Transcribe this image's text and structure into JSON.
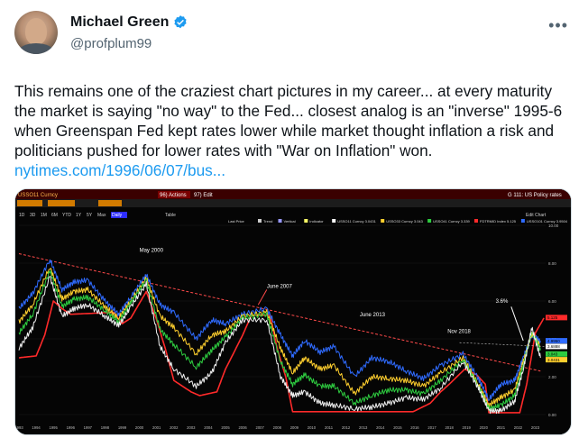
{
  "author": {
    "name": "Michael Green",
    "handle": "@profplum99"
  },
  "tweet": {
    "text": "This remains one of the craziest chart pictures in my career... at every maturity the market is saying \"no way\" to the Fed... closest analog is an \"inverse\" 1995-6 when Greenspan Fed kept rates lower while market thought inflation a risk and politicians pushed for lower rates with \"War on Inflation\" won. ",
    "link": "nytimes.com/1996/06/07/bus..."
  },
  "terminal": {
    "ticker": "USSO11 Curncy",
    "menu_actions": "96) Actions",
    "menu_edit": "97) Edit",
    "right_title": "G 111: US Policy rates",
    "toolbar_buttons": [
      "1D",
      "3D",
      "1M",
      "6M",
      "YTD",
      "1Y",
      "5Y",
      "Max"
    ],
    "toolbar_daily": "Daily",
    "toolbar_table": "Table",
    "legend_items": [
      "Last Price",
      "Trend",
      "Vertical",
      "Indicator",
      "USSO11 Curncy 3.0431",
      "USSO33 Curncy 3.043",
      "USSO41 Curncy 3.339",
      "FDTRMID Index 5.125",
      "USSO101 Curncy 3.9504"
    ],
    "edit_chart": "Edit Chart"
  },
  "chart_data": {
    "type": "line",
    "x_ticks": [
      "1993",
      "1994",
      "1995",
      "1996",
      "1997",
      "1998",
      "1999",
      "2000",
      "2001",
      "2002",
      "2003",
      "2004",
      "2005",
      "2006",
      "2007",
      "2008",
      "2009",
      "2010",
      "2011",
      "2012",
      "2013",
      "2014",
      "2015",
      "2016",
      "2017",
      "2018",
      "2019",
      "2020",
      "2021",
      "2022",
      "2023"
    ],
    "y_ticks": [
      "10.00",
      "8.00",
      "6.00",
      "4.00",
      "2.00",
      "0.00"
    ],
    "ylim": [
      0,
      10
    ],
    "annotations": [
      "May 2000",
      "June 2007",
      "June 2013",
      "Nov 2018",
      "3.6%"
    ],
    "price_tags": [
      "5.125",
      "4.9950",
      "3.6888",
      "3.043",
      "3.0431"
    ],
    "series": [
      {
        "color": "#ff2a2a",
        "x": [
          1993.0,
          1994.0,
          1994.5,
          1995.0,
          1995.5,
          1996.0,
          1998.5,
          1999.0,
          1999.5,
          2000.4,
          2001.0,
          2001.5,
          2002.0,
          2003.0,
          2003.5,
          2004.5,
          2005.0,
          2006.0,
          2006.5,
          2007.6,
          2008.0,
          2008.5,
          2008.9,
          2015.9,
          2016.9,
          2017.5,
          2018.0,
          2018.9,
          2019.6,
          2020.1,
          2020.3,
          2022.1,
          2022.5,
          2022.8,
          2023.0,
          2023.5
        ],
        "values": [
          3.0,
          3.1,
          4.2,
          6.0,
          5.6,
          5.3,
          5.4,
          4.8,
          5.1,
          6.5,
          5.0,
          3.5,
          1.8,
          1.2,
          1.0,
          1.2,
          2.4,
          4.2,
          5.25,
          5.25,
          3.5,
          2.0,
          0.15,
          0.15,
          0.6,
          1.2,
          1.6,
          2.4,
          2.1,
          1.6,
          0.1,
          0.1,
          1.6,
          3.2,
          4.3,
          5.1
        ]
      },
      {
        "color": "#2f6bff",
        "x": [
          1993.0,
          1993.8,
          1994.8,
          1995.5,
          1996.2,
          1997.0,
          1998.0,
          1998.8,
          1999.5,
          2000.4,
          2001.2,
          2002.0,
          2003.3,
          2004.2,
          2005.0,
          2006.0,
          2007.4,
          2008.2,
          2008.9,
          2009.6,
          2010.5,
          2011.3,
          2012.5,
          2013.5,
          2014.5,
          2015.5,
          2016.5,
          2017.5,
          2018.8,
          2019.7,
          2020.3,
          2021.0,
          2021.8,
          2022.3,
          2022.8,
          2023.3
        ],
        "values": [
          5.6,
          6.4,
          8.2,
          6.6,
          7.0,
          7.1,
          6.0,
          5.3,
          6.2,
          7.4,
          5.8,
          5.4,
          4.0,
          5.0,
          4.8,
          5.3,
          5.6,
          4.2,
          3.1,
          3.9,
          3.3,
          3.6,
          2.0,
          3.0,
          2.8,
          2.3,
          1.9,
          2.6,
          3.2,
          1.9,
          0.8,
          1.6,
          1.8,
          3.0,
          4.2,
          3.9
        ]
      },
      {
        "color": "#ffcf2e",
        "x": [
          1993.0,
          1993.8,
          1994.8,
          1995.5,
          1996.2,
          1997.0,
          1998.0,
          1998.8,
          1999.5,
          2000.4,
          2001.2,
          2002.0,
          2003.3,
          2004.2,
          2005.0,
          2006.0,
          2007.4,
          2008.2,
          2008.9,
          2009.6,
          2010.5,
          2011.3,
          2012.5,
          2013.5,
          2014.5,
          2015.5,
          2016.5,
          2017.5,
          2018.8,
          2019.7,
          2020.3,
          2021.0,
          2021.8,
          2022.3,
          2022.8,
          2023.3
        ],
        "values": [
          4.9,
          5.8,
          7.8,
          6.1,
          6.5,
          6.6,
          5.7,
          5.1,
          6.0,
          7.2,
          5.2,
          4.6,
          3.2,
          4.2,
          4.4,
          5.2,
          5.4,
          3.5,
          2.2,
          3.0,
          2.4,
          2.6,
          1.1,
          2.0,
          1.9,
          1.8,
          1.5,
          2.2,
          3.0,
          1.6,
          0.5,
          0.9,
          1.3,
          2.8,
          4.3,
          3.6
        ]
      },
      {
        "color": "#2ecc40",
        "x": [
          1993.0,
          1993.8,
          1994.8,
          1995.5,
          1996.2,
          1997.0,
          1998.0,
          1998.8,
          1999.5,
          2000.4,
          2001.2,
          2002.0,
          2003.3,
          2004.2,
          2005.0,
          2006.0,
          2007.4,
          2008.2,
          2008.9,
          2009.6,
          2010.5,
          2011.3,
          2012.5,
          2013.5,
          2014.5,
          2015.5,
          2016.5,
          2017.5,
          2018.8,
          2019.7,
          2020.3,
          2021.0,
          2021.8,
          2022.3,
          2022.8,
          2023.3
        ],
        "values": [
          4.3,
          5.3,
          7.6,
          5.7,
          6.1,
          6.2,
          5.5,
          4.9,
          5.9,
          7.1,
          4.5,
          3.7,
          2.5,
          3.4,
          4.1,
          5.1,
          5.3,
          2.8,
          1.6,
          2.1,
          1.5,
          1.5,
          0.6,
          1.0,
          1.3,
          1.3,
          1.1,
          1.8,
          2.9,
          1.5,
          0.3,
          0.5,
          1.0,
          2.6,
          4.4,
          3.4
        ]
      },
      {
        "color": "#f0f0f0",
        "x": [
          1993.0,
          1993.8,
          1994.8,
          1995.5,
          1996.2,
          1997.0,
          1998.0,
          1998.8,
          1999.5,
          2000.4,
          2001.2,
          2002.0,
          2003.3,
          2004.2,
          2005.0,
          2006.0,
          2007.4,
          2008.2,
          2008.9,
          2009.6,
          2010.5,
          2011.3,
          2012.5,
          2013.5,
          2014.5,
          2015.5,
          2016.5,
          2017.5,
          2018.8,
          2019.7,
          2020.3,
          2021.0,
          2021.8,
          2022.3,
          2022.8,
          2023.3
        ],
        "values": [
          3.5,
          4.6,
          7.3,
          5.2,
          5.6,
          5.8,
          5.2,
          4.7,
          5.7,
          6.9,
          3.6,
          2.4,
          1.5,
          2.2,
          3.8,
          5.0,
          5.0,
          2.0,
          1.0,
          1.2,
          0.6,
          0.5,
          0.3,
          0.4,
          0.6,
          0.9,
          0.8,
          1.4,
          2.8,
          1.4,
          0.2,
          0.2,
          0.7,
          2.4,
          4.6,
          3.0
        ]
      }
    ],
    "trend_line": {
      "color": "#ff4a4a",
      "x": [
        1993.0,
        2023.3
      ],
      "values": [
        8.5,
        2.3
      ]
    }
  }
}
